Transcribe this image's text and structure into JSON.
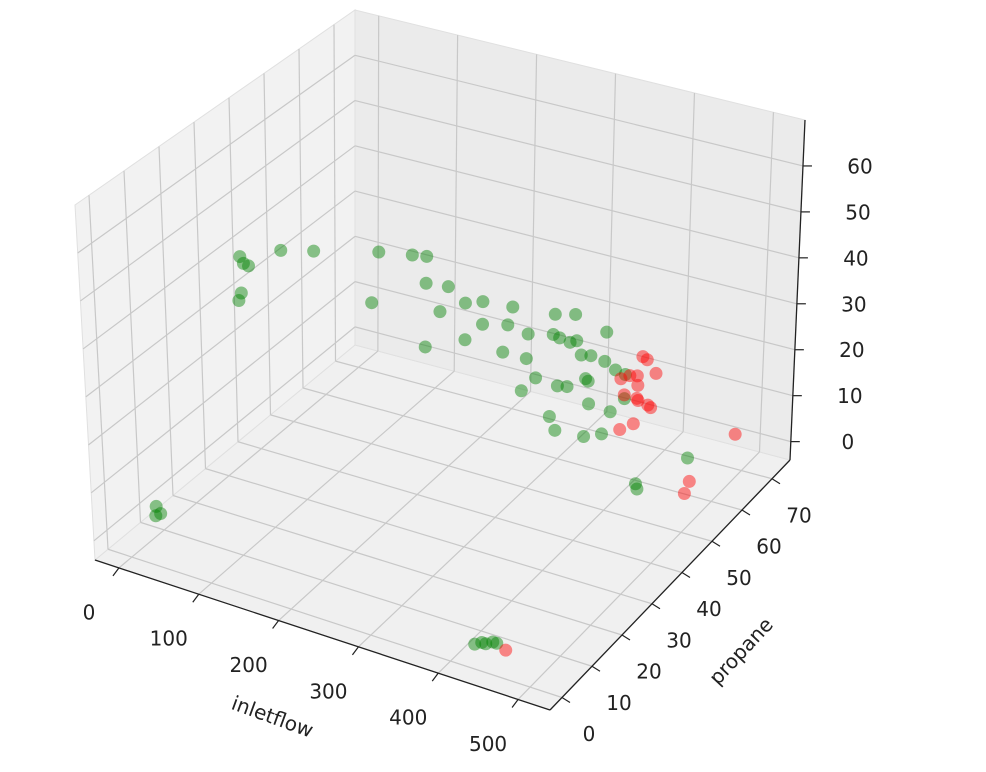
{
  "chart_data": {
    "type": "scatter3d",
    "xlabel": "inletflow",
    "ylabel": "propane",
    "xlim": [
      -30,
      540
    ],
    "ylim": [
      -4,
      76
    ],
    "zlim": [
      -4,
      70
    ],
    "xticks": [
      0,
      100,
      200,
      300,
      400,
      500
    ],
    "yticks": [
      0,
      10,
      20,
      30,
      40,
      50,
      60,
      70
    ],
    "zticks": [
      0,
      10,
      20,
      30,
      40,
      50,
      60
    ],
    "grid": true,
    "series": [
      {
        "color": "#008000",
        "x": [
          0,
          0,
          2,
          5,
          6,
          30,
          50,
          90,
          120,
          130,
          110,
          150,
          170,
          180,
          200,
          210,
          230,
          220,
          250,
          240,
          190,
          260,
          280,
          290,
          300,
          310,
          320,
          330,
          340,
          350,
          360,
          370,
          380,
          390,
          300,
          320,
          340,
          360,
          380,
          350,
          330,
          370,
          395,
          385,
          345,
          365,
          310,
          400,
          355,
          20,
          22,
          21,
          430,
          435,
          440,
          445,
          450,
          470,
          472,
          505
        ],
        "y": [
          36,
          35,
          37,
          34,
          33,
          40,
          45,
          55,
          58,
          60,
          48,
          55,
          57,
          52,
          55,
          58,
          53,
          50,
          56,
          60,
          45,
          52,
          55,
          52,
          58,
          50,
          55,
          52,
          57,
          50,
          55,
          52,
          58,
          54,
          48,
          60,
          47,
          60,
          48,
          56,
          58,
          57,
          50,
          60,
          52,
          53,
          56,
          56,
          45,
          3,
          4,
          3,
          0,
          1,
          1,
          2,
          2,
          42,
          42,
          50
        ],
        "z": [
          38,
          40,
          37,
          33,
          32,
          40,
          38,
          34,
          33,
          32,
          28,
          30,
          29,
          27,
          28,
          27,
          26,
          24,
          25,
          26,
          24,
          22,
          25,
          22,
          24,
          20,
          26,
          18,
          22,
          20,
          24,
          16,
          20,
          14,
          18,
          28,
          15,
          26,
          12,
          18,
          24,
          22,
          12,
          18,
          28,
          20,
          30,
          16,
          14,
          4,
          4,
          6,
          1,
          1,
          1,
          1,
          1,
          10,
          9,
          12
        ]
      },
      {
        "color": "#ff0000",
        "x": [
          410,
          415,
          420,
          425,
          412,
          418,
          422,
          428,
          408,
          416,
          424,
          430,
          414,
          426,
          465,
          510,
          512,
          520
        ],
        "y": [
          55,
          52,
          58,
          54,
          57,
          50,
          56,
          53,
          58,
          55,
          60,
          56,
          51,
          58,
          1,
          48,
          49,
          62
        ],
        "z": [
          22,
          20,
          24,
          18,
          16,
          14,
          26,
          22,
          20,
          12,
          20,
          16,
          24,
          14,
          1,
          6,
          8,
          10
        ]
      }
    ]
  }
}
